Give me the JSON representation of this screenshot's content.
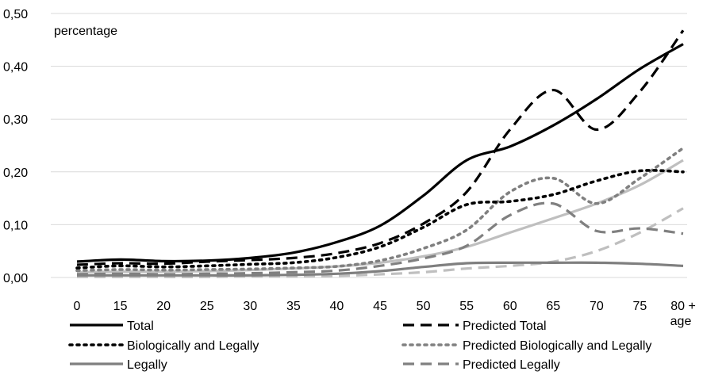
{
  "chart_data": {
    "type": "line",
    "title": "",
    "annotation": "percentage",
    "xlabel": "age",
    "ylabel": "",
    "categories": [
      "0",
      "15",
      "20",
      "25",
      "30",
      "35",
      "40",
      "45",
      "50",
      "55",
      "60",
      "65",
      "70",
      "75",
      "80 +"
    ],
    "y_tick_labels": [
      "0,00",
      "0,10",
      "0,20",
      "0,30",
      "0,40",
      "0,50"
    ],
    "ylim": [
      0,
      0.5
    ],
    "grid": "horizontal",
    "legend_position": "bottom",
    "series": [
      {
        "name": "Total",
        "color": "#000000",
        "dash": "solid",
        "values": [
          0.03,
          0.034,
          0.031,
          0.032,
          0.037,
          0.047,
          0.067,
          0.098,
          0.155,
          0.222,
          0.248,
          0.288,
          0.338,
          0.395,
          0.442
        ]
      },
      {
        "name": "Predicted Total",
        "color": "#000000",
        "dash": "dashed",
        "values": [
          0.024,
          0.027,
          0.026,
          0.03,
          0.033,
          0.037,
          0.046,
          0.065,
          0.102,
          0.162,
          0.28,
          0.355,
          0.28,
          0.352,
          0.468
        ]
      },
      {
        "name": "Biologically and Legally",
        "color": "#000000",
        "dash": "dotted",
        "values": [
          0.018,
          0.022,
          0.02,
          0.022,
          0.025,
          0.028,
          0.038,
          0.058,
          0.095,
          0.138,
          0.144,
          0.157,
          0.183,
          0.202,
          0.2
        ]
      },
      {
        "name": "Predicted Biologically and Legally",
        "color": "#808080",
        "dash": "dotted",
        "values": [
          0.013,
          0.015,
          0.014,
          0.015,
          0.016,
          0.018,
          0.021,
          0.032,
          0.055,
          0.09,
          0.162,
          0.188,
          0.14,
          0.188,
          0.245
        ]
      },
      {
        "name": "Legally",
        "color": "#7f7f7f",
        "dash": "solid",
        "values": [
          0.004,
          0.004,
          0.004,
          0.004,
          0.004,
          0.005,
          0.007,
          0.012,
          0.02,
          0.027,
          0.028,
          0.028,
          0.028,
          0.026,
          0.022
        ]
      },
      {
        "name": "Predicted Legally",
        "color": "#808080",
        "dash": "dashed",
        "values": [
          0.006,
          0.007,
          0.006,
          0.007,
          0.008,
          0.01,
          0.013,
          0.022,
          0.036,
          0.06,
          0.118,
          0.14,
          0.088,
          0.093,
          0.083
        ]
      },
      {
        "name": "",
        "color": "#bfbfbf",
        "dash": "solid",
        "values": [
          0.01,
          0.011,
          0.011,
          0.012,
          0.014,
          0.017,
          0.021,
          0.028,
          0.04,
          0.058,
          0.085,
          0.112,
          0.14,
          0.175,
          0.222
        ]
      },
      {
        "name": "",
        "color": "#bfbfbf",
        "dash": "dashed",
        "values": [
          0.001,
          0.001,
          0.001,
          0.001,
          0.002,
          0.002,
          0.003,
          0.006,
          0.01,
          0.017,
          0.022,
          0.03,
          0.05,
          0.085,
          0.131
        ]
      }
    ]
  }
}
